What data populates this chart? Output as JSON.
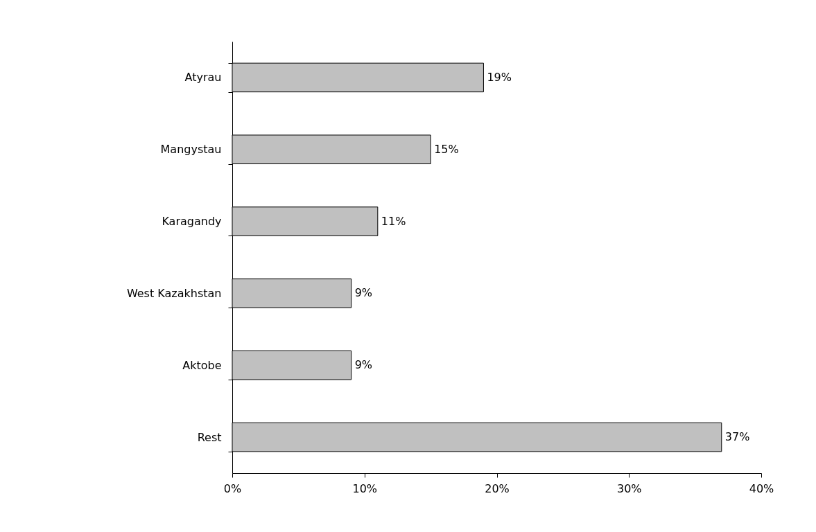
{
  "chart_data": {
    "type": "bar",
    "orientation": "horizontal",
    "categories": [
      "Atyrau",
      "Mangystau",
      "Karagandy",
      "West Kazakhstan",
      "Aktobe",
      "Rest"
    ],
    "values": [
      19,
      15,
      11,
      9,
      9,
      37
    ],
    "value_labels": [
      "19%",
      "15%",
      "11%",
      "9%",
      "9%",
      "37%"
    ],
    "color": "#c0c0c0",
    "xlim": [
      0,
      40
    ],
    "xticks": [
      {
        "value": 0,
        "label": "0%"
      },
      {
        "value": 10,
        "label": "10%"
      },
      {
        "value": 20,
        "label": "20%"
      },
      {
        "value": 30,
        "label": "30%"
      },
      {
        "value": 40,
        "label": "40%"
      }
    ],
    "grid": false
  }
}
